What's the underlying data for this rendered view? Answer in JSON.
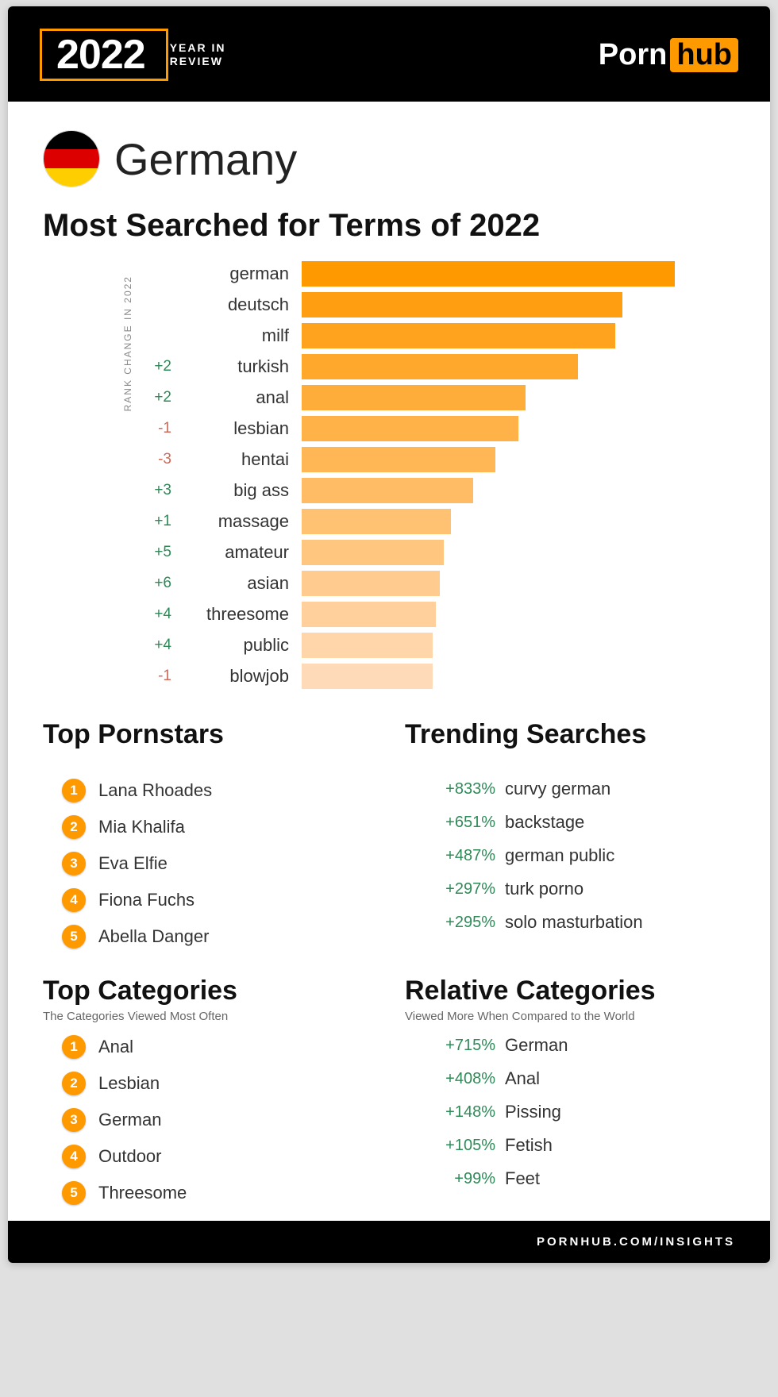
{
  "header": {
    "year": "2022",
    "year_sub_line1": "YEAR IN",
    "year_sub_line2": "REVIEW",
    "brand_left": "Porn",
    "brand_right": "hub"
  },
  "colors": {
    "accent": "#ff9900",
    "positive": "#2e8b58",
    "negative": "#d06a5a",
    "text": "#333333",
    "muted": "#888888",
    "bg_header": "#000000",
    "bg_card": "#ffffff"
  },
  "country": {
    "name": "Germany",
    "flag_colors": [
      "#000000",
      "#dd0000",
      "#ffce00"
    ]
  },
  "searched": {
    "title": "Most Searched for Terms of 2022",
    "axis_label": "RANK CHANGE IN 2022",
    "bar_max_width": 470,
    "rows": [
      {
        "rank_change": "",
        "rc_sign": 0,
        "label": "german",
        "value": 100,
        "color": "#ff9900"
      },
      {
        "rank_change": "",
        "rc_sign": 0,
        "label": "deutsch",
        "value": 86,
        "color": "#ff9e10"
      },
      {
        "rank_change": "",
        "rc_sign": 0,
        "label": "milf",
        "value": 84,
        "color": "#ffa31e"
      },
      {
        "rank_change": "+2",
        "rc_sign": 1,
        "label": "turkish",
        "value": 74,
        "color": "#ffa82c"
      },
      {
        "rank_change": "+2",
        "rc_sign": 1,
        "label": "anal",
        "value": 60,
        "color": "#ffad3a"
      },
      {
        "rank_change": "-1",
        "rc_sign": -1,
        "label": "lesbian",
        "value": 58,
        "color": "#ffb248"
      },
      {
        "rank_change": "-3",
        "rc_sign": -1,
        "label": "hentai",
        "value": 52,
        "color": "#ffb756"
      },
      {
        "rank_change": "+3",
        "rc_sign": 1,
        "label": "big ass",
        "value": 46,
        "color": "#ffbc64"
      },
      {
        "rank_change": "+1",
        "rc_sign": 1,
        "label": "massage",
        "value": 40,
        "color": "#ffc172"
      },
      {
        "rank_change": "+5",
        "rc_sign": 1,
        "label": "amateur",
        "value": 38,
        "color": "#ffc680"
      },
      {
        "rank_change": "+6",
        "rc_sign": 1,
        "label": "asian",
        "value": 37,
        "color": "#ffcb8e"
      },
      {
        "rank_change": "+4",
        "rc_sign": 1,
        "label": "threesome",
        "value": 36,
        "color": "#ffd09c"
      },
      {
        "rank_change": "+4",
        "rc_sign": 1,
        "label": "public",
        "value": 35,
        "color": "#ffd5aa"
      },
      {
        "rank_change": "-1",
        "rc_sign": -1,
        "label": "blowjob",
        "value": 35,
        "color": "#ffdab8"
      }
    ]
  },
  "top_pornstars": {
    "title": "Top Pornstars",
    "subtitle": "",
    "items": [
      {
        "rank": 1,
        "label": "Lana Rhoades"
      },
      {
        "rank": 2,
        "label": "Mia Khalifa"
      },
      {
        "rank": 3,
        "label": "Eva Elfie"
      },
      {
        "rank": 4,
        "label": "Fiona Fuchs"
      },
      {
        "rank": 5,
        "label": "Abella Danger"
      }
    ]
  },
  "trending": {
    "title": "Trending Searches",
    "subtitle": "",
    "items": [
      {
        "pct": "+833%",
        "label": "curvy german"
      },
      {
        "pct": "+651%",
        "label": "backstage"
      },
      {
        "pct": "+487%",
        "label": "german public"
      },
      {
        "pct": "+297%",
        "label": "turk porno"
      },
      {
        "pct": "+295%",
        "label": "solo masturbation"
      }
    ]
  },
  "top_categories": {
    "title": "Top Categories",
    "subtitle": "The Categories Viewed Most Often",
    "items": [
      {
        "rank": 1,
        "label": "Anal"
      },
      {
        "rank": 2,
        "label": "Lesbian"
      },
      {
        "rank": 3,
        "label": "German"
      },
      {
        "rank": 4,
        "label": "Outdoor"
      },
      {
        "rank": 5,
        "label": "Threesome"
      }
    ]
  },
  "relative_categories": {
    "title": "Relative Categories",
    "subtitle": "Viewed More When Compared to the World",
    "items": [
      {
        "pct": "+715%",
        "label": "German"
      },
      {
        "pct": "+408%",
        "label": "Anal"
      },
      {
        "pct": "+148%",
        "label": "Pissing"
      },
      {
        "pct": "+105%",
        "label": "Fetish"
      },
      {
        "pct": "+99%",
        "label": "Feet"
      }
    ]
  },
  "footer": {
    "text": "PORNHUB.COM/INSIGHTS"
  }
}
